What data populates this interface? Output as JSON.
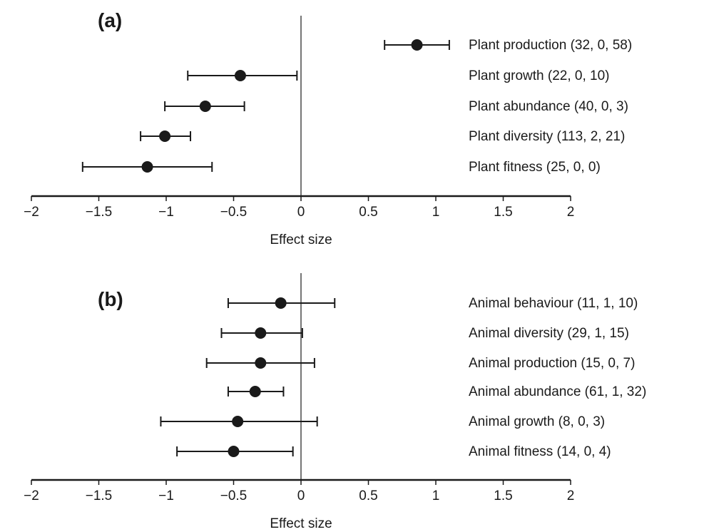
{
  "chart_data": [
    {
      "type": "scatter",
      "panel_label": "(a)",
      "xlabel": "Effect size",
      "xlim": [
        -2,
        2
      ],
      "x_ticks": [
        -2,
        -1.5,
        -1,
        -0.5,
        0,
        0.5,
        1,
        1.5,
        2
      ],
      "x_tick_labels": [
        "−2",
        "−1.5",
        "−1",
        "−0.5",
        "0",
        "0.5",
        "1",
        "1.5",
        "2"
      ],
      "marker_color": "#1a1a1a",
      "rows": [
        {
          "label": "Plant production (32, 0, 58)",
          "mean": 0.86,
          "lower": 0.62,
          "upper": 1.1
        },
        {
          "label": "Plant growth (22, 0, 10)",
          "mean": -0.45,
          "lower": -0.84,
          "upper": -0.03
        },
        {
          "label": "Plant abundance (40, 0, 3)",
          "mean": -0.71,
          "lower": -1.01,
          "upper": -0.42
        },
        {
          "label": "Plant diversity (113, 2, 21)",
          "mean": -1.01,
          "lower": -1.19,
          "upper": -0.82
        },
        {
          "label": "Plant fitness (25, 0, 0)",
          "mean": -1.14,
          "lower": -1.62,
          "upper": -0.66
        }
      ]
    },
    {
      "type": "scatter",
      "panel_label": "(b)",
      "xlabel": "Effect size",
      "xlim": [
        -2,
        2
      ],
      "x_ticks": [
        -2,
        -1.5,
        -1,
        -0.5,
        0,
        0.5,
        1,
        1.5,
        2
      ],
      "x_tick_labels": [
        "−2",
        "−1.5",
        "−1",
        "−0.5",
        "0",
        "0.5",
        "1",
        "1.5",
        "2"
      ],
      "marker_color": "#1a1a1a",
      "rows": [
        {
          "label": "Animal behaviour (11, 1, 10)",
          "mean": -0.15,
          "lower": -0.54,
          "upper": 0.25
        },
        {
          "label": "Animal diversity (29, 1, 15)",
          "mean": -0.3,
          "lower": -0.59,
          "upper": 0.01
        },
        {
          "label": "Animal production (15, 0, 7)",
          "mean": -0.3,
          "lower": -0.7,
          "upper": 0.1
        },
        {
          "label": "Animal abundance (61, 1, 32)",
          "mean": -0.34,
          "lower": -0.54,
          "upper": -0.13
        },
        {
          "label": "Animal growth (8, 0, 3)",
          "mean": -0.47,
          "lower": -1.04,
          "upper": 0.12
        },
        {
          "label": "Animal fitness (14, 0, 4)",
          "mean": -0.5,
          "lower": -0.92,
          "upper": -0.06
        }
      ]
    }
  ]
}
